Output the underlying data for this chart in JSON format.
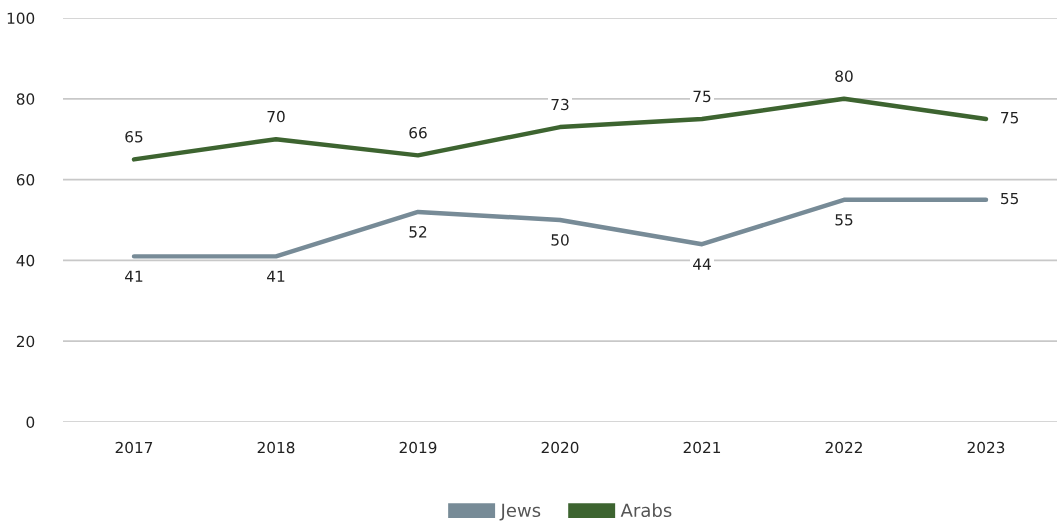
{
  "chart_data": {
    "type": "line",
    "categories": [
      "2017",
      "2018",
      "2019",
      "2020",
      "2021",
      "2022",
      "2023"
    ],
    "series": [
      {
        "name": "Jews",
        "color": "#778b97",
        "values": [
          41,
          41,
          52,
          50,
          44,
          55,
          55
        ]
      },
      {
        "name": "Arabs",
        "color": "#3d6430",
        "values": [
          65,
          70,
          66,
          73,
          75,
          80,
          75
        ]
      }
    ],
    "ylim": [
      0,
      100
    ],
    "yticks": [
      0,
      20,
      40,
      60,
      80,
      100
    ],
    "grid": "y",
    "legend": "bottom",
    "data_labels": true,
    "marker": "none",
    "line_style": "solid"
  }
}
